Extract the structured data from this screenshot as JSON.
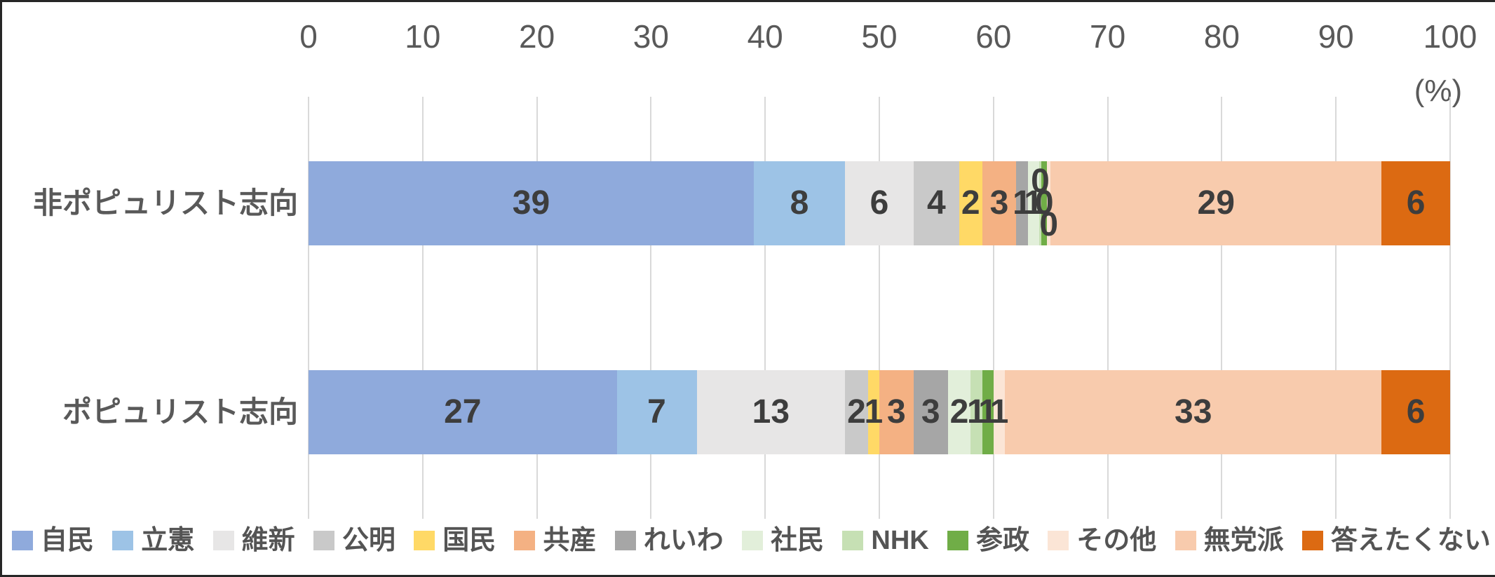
{
  "chart_data": {
    "type": "bar",
    "stacked": true,
    "horizontal": true,
    "title": "",
    "xlabel_unit": "(%)",
    "xlim": [
      0,
      100
    ],
    "xticks": [
      0,
      10,
      20,
      30,
      40,
      50,
      60,
      70,
      80,
      90,
      100
    ],
    "grid": true,
    "legend_position": "bottom",
    "value_labels": true,
    "categories": [
      "非ポピュリスト志向",
      "ポピュリスト志向"
    ],
    "series": [
      {
        "name": "自民",
        "color": "#8FAADC",
        "values": [
          39,
          27
        ]
      },
      {
        "name": "立憲",
        "color": "#9DC3E6",
        "values": [
          8,
          7
        ]
      },
      {
        "name": "維新",
        "color": "#E7E6E6",
        "values": [
          6,
          13
        ]
      },
      {
        "name": "公明",
        "color": "#C9C9C9",
        "values": [
          4,
          2
        ]
      },
      {
        "name": "国民",
        "color": "#FFD966",
        "values": [
          2,
          1
        ]
      },
      {
        "name": "共産",
        "color": "#F4B183",
        "values": [
          3,
          3
        ]
      },
      {
        "name": "れいわ",
        "color": "#A6A6A6",
        "values": [
          1,
          3
        ]
      },
      {
        "name": "社民",
        "color": "#E2EFDA",
        "values": [
          1,
          2
        ]
      },
      {
        "name": "NHK",
        "color": "#C6E0B4",
        "values": [
          0,
          1
        ],
        "render_widths": [
          0.2,
          1
        ],
        "label_dy": [
          -31,
          0
        ]
      },
      {
        "name": "参政",
        "color": "#70AD47",
        "values": [
          0,
          1
        ],
        "render_widths": [
          0.5,
          1
        ],
        "label_dy": [
          0,
          0
        ]
      },
      {
        "name": "その他",
        "color": "#FBE5D6",
        "values": [
          0,
          1
        ],
        "render_widths": [
          0.3,
          1
        ],
        "label_dy": [
          31,
          0
        ]
      },
      {
        "name": "無党派",
        "color": "#F8CBAD",
        "values": [
          29,
          33
        ]
      },
      {
        "name": "答えたくない",
        "color": "#DC6A12",
        "values": [
          6,
          6
        ]
      }
    ]
  },
  "style_colors": {
    "gridline": "#d9d9d9",
    "axis_text": "#595959",
    "value_text": "#3d3d3d",
    "frame_border": "#262626",
    "background": "#ffffff"
  }
}
